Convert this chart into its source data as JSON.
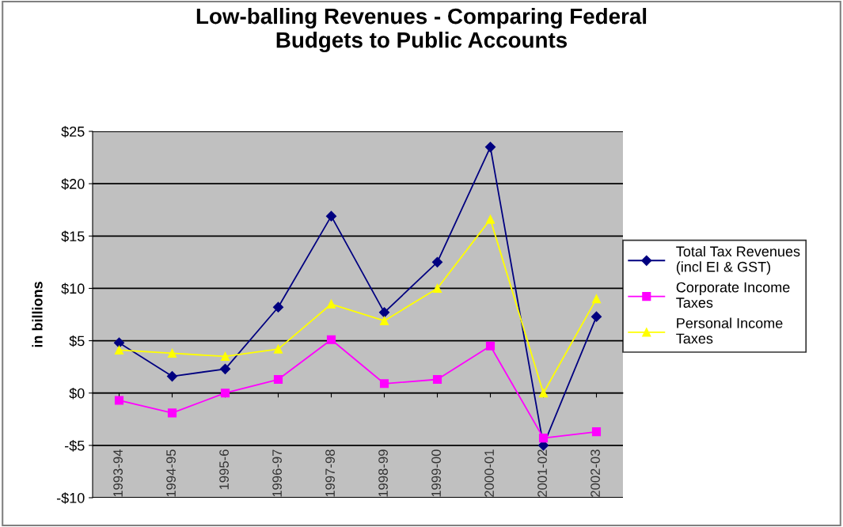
{
  "chart_data": {
    "type": "line",
    "title": "Low-balling Revenues - Comparing Federal\nBudgets to Public Accounts",
    "ylabel": "in billions",
    "categories": [
      "1993-94",
      "1994-95",
      "1995-6",
      "1996-97",
      "1997-98",
      "1998-99",
      "1999-00",
      "2000-01",
      "2001-02",
      "2002-03"
    ],
    "series": [
      {
        "name": "Total Tax Revenues\n(incl EI & GST)",
        "color": "#000080",
        "marker": "diamond",
        "values": [
          4.8,
          1.6,
          2.3,
          8.2,
          16.9,
          7.7,
          12.5,
          23.5,
          -5.0,
          7.3
        ]
      },
      {
        "name": "Corporate Income\nTaxes",
        "color": "#ff00ff",
        "marker": "square",
        "values": [
          -0.7,
          -1.9,
          0.0,
          1.3,
          5.1,
          0.9,
          1.3,
          4.5,
          -4.3,
          -3.7
        ]
      },
      {
        "name": "Personal Income\nTaxes",
        "color": "#ffff00",
        "marker": "triangle",
        "values": [
          4.1,
          3.8,
          3.5,
          4.2,
          8.5,
          6.9,
          10.0,
          16.6,
          0.0,
          9.0
        ]
      }
    ],
    "ylim": [
      -10,
      25
    ],
    "yticks": [
      {
        "value": -10,
        "label": "-$10"
      },
      {
        "value": -5,
        "label": "-$5"
      },
      {
        "value": 0,
        "label": "$0"
      },
      {
        "value": 5,
        "label": "$5"
      },
      {
        "value": 10,
        "label": "$10"
      },
      {
        "value": 15,
        "label": "$15"
      },
      {
        "value": 20,
        "label": "$20"
      },
      {
        "value": 25,
        "label": "$25"
      }
    ],
    "grid": "y",
    "legend": "right"
  }
}
